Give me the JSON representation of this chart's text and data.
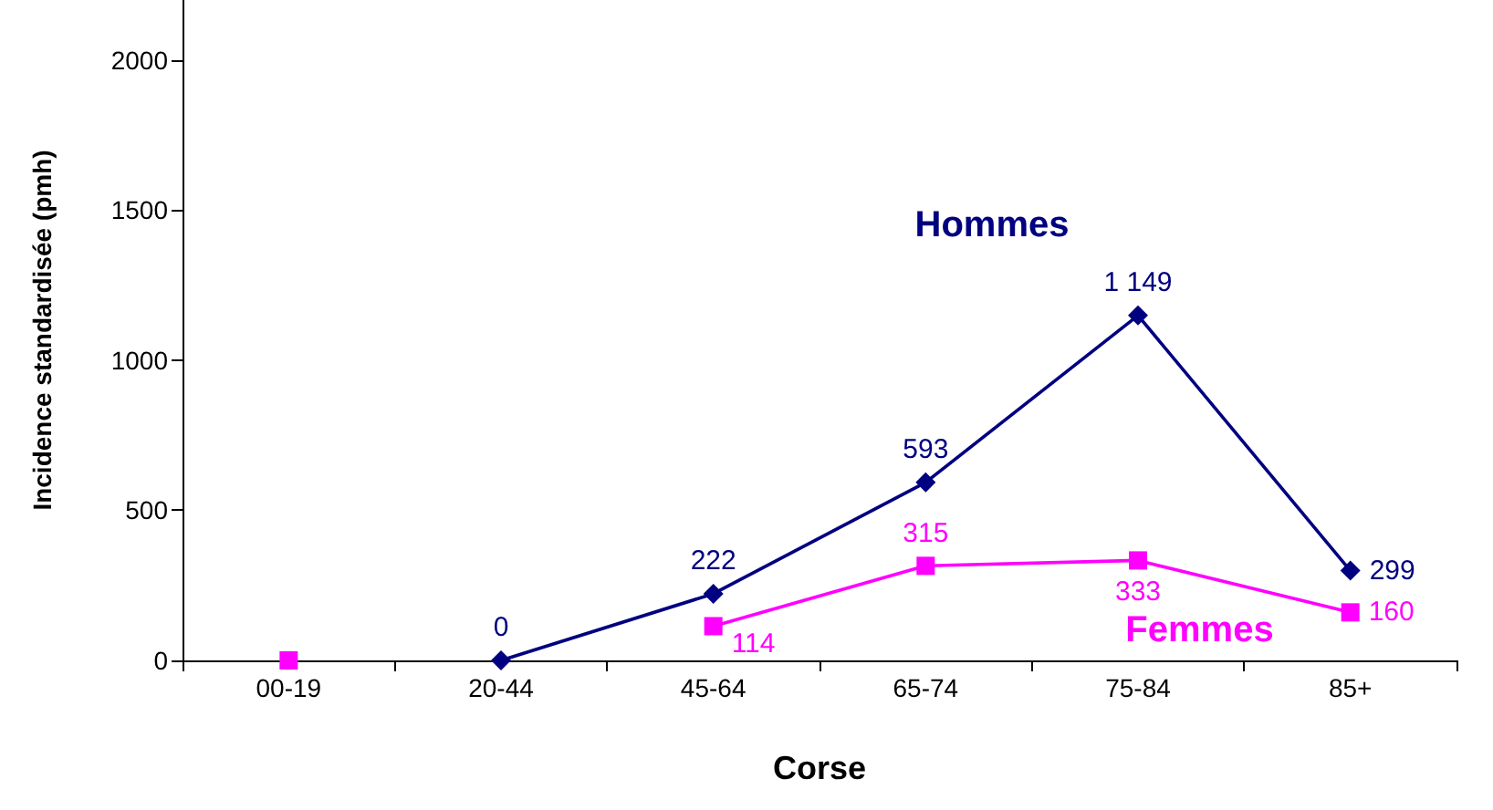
{
  "chart_data": {
    "type": "line",
    "xlabel": "Corse",
    "ylabel": "Incidence standardisée (pmh)",
    "categories": [
      "00-19",
      "20-44",
      "45-64",
      "65-74",
      "75-84",
      "85+"
    ],
    "ylim": [
      0,
      2200
    ],
    "yticks": [
      0,
      500,
      1000,
      1500,
      2000
    ],
    "grid": false,
    "legend": false,
    "series": [
      {
        "name": "Hommes",
        "color": "#000080",
        "marker": "diamond",
        "values": [
          null,
          0,
          222,
          593,
          1149,
          299
        ],
        "value_labels": [
          null,
          "0",
          "222",
          "593",
          "1 149",
          "299"
        ]
      },
      {
        "name": "Femmes",
        "color": "#ff00ff",
        "marker": "square",
        "values": [
          0,
          null,
          114,
          315,
          333,
          160
        ],
        "value_labels": [
          null,
          null,
          "114",
          "315",
          "333",
          "160"
        ]
      }
    ]
  }
}
